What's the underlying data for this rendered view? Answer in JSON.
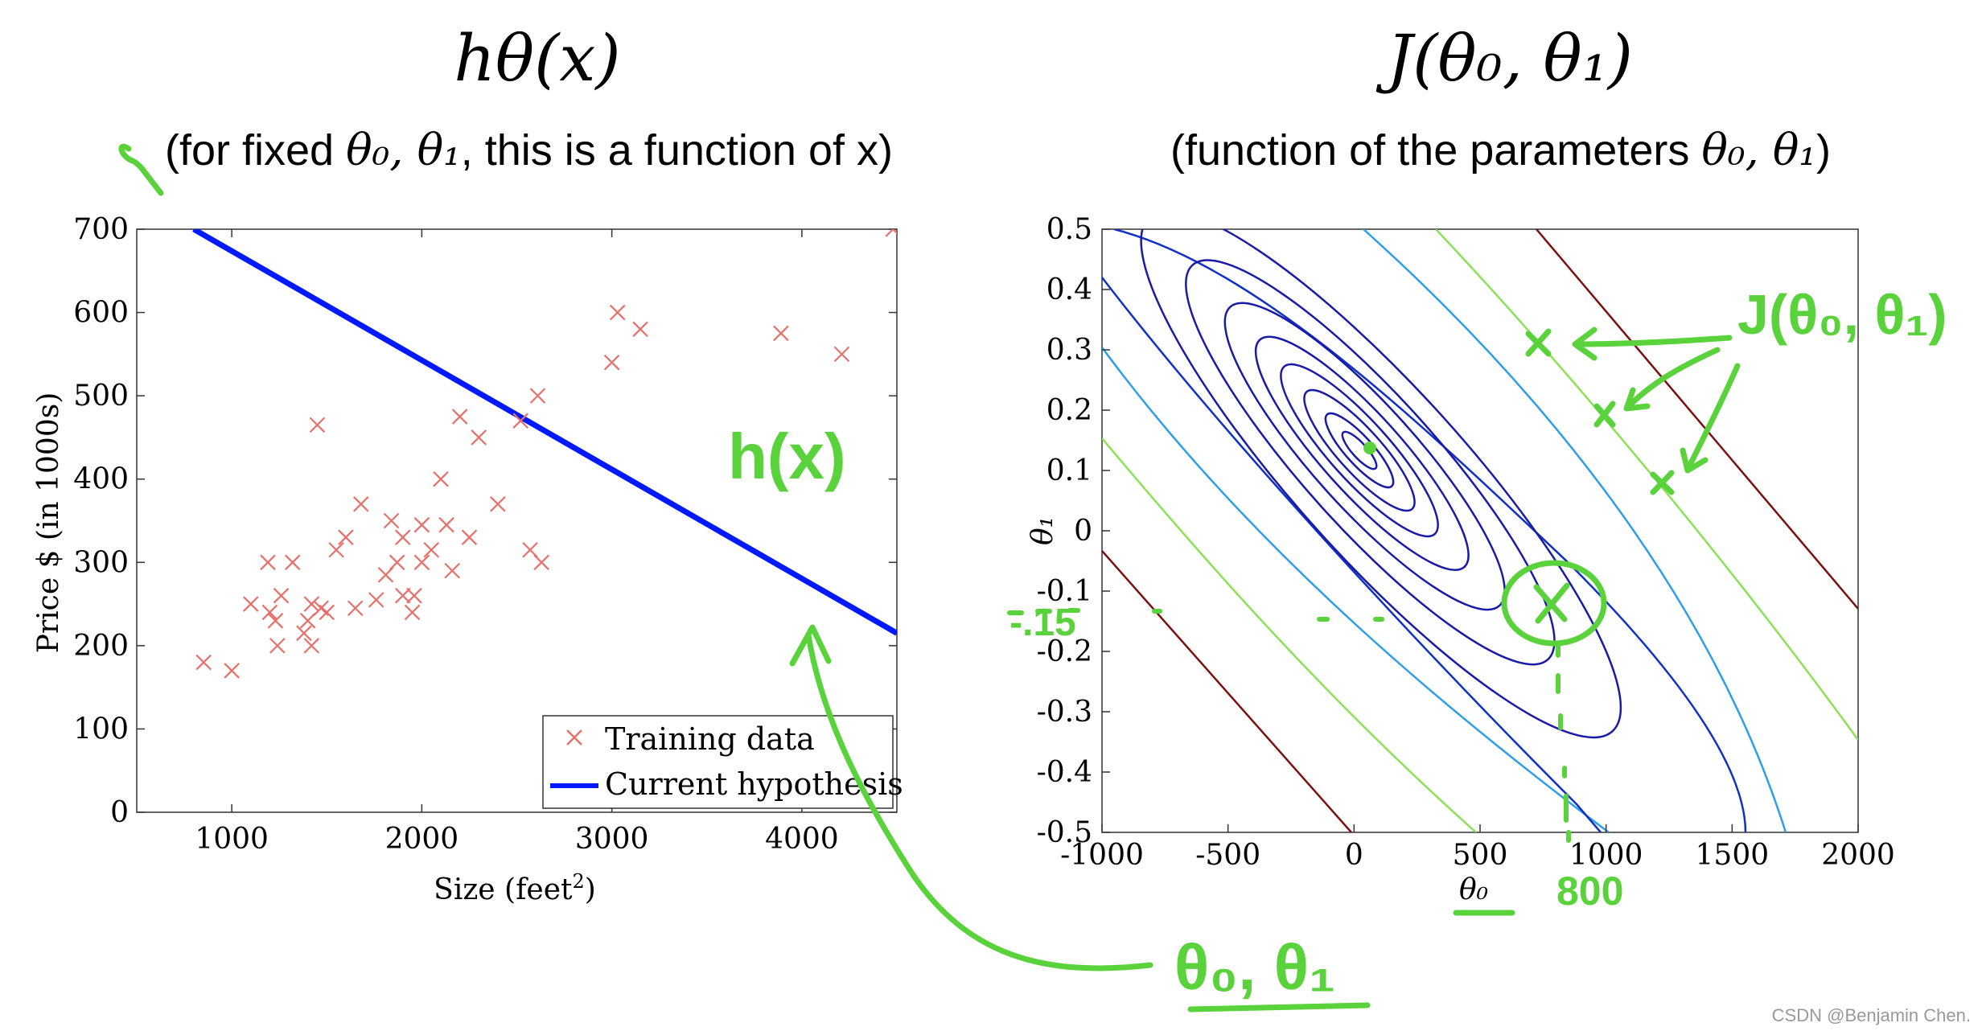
{
  "left": {
    "title": "hθ(x)",
    "subtitle_before": "(for fixed ",
    "subtitle_math": "θ₀, θ₁",
    "subtitle_after": ", this is a function of x)"
  },
  "right": {
    "title": "J(θ₀, θ₁)",
    "subtitle_before": "(function of the parameters ",
    "subtitle_math": "θ₀, θ₁",
    "subtitle_after": ")"
  },
  "annotations": {
    "hx": "h(x)",
    "j_label": "J(θ₀, θ₁)",
    "theta_label": "θ₀, θ₁",
    "x_800": "800",
    "y_015": "-.15"
  },
  "watermark": "CSDN @Benjamin Chen.",
  "colors": {
    "hypothesis": "#0019ff",
    "training": "#e8706a",
    "annotation": "#5ad23c"
  },
  "chart_data": [
    {
      "type": "scatter",
      "xlabel": "Size (feet²)",
      "xlabel_text": "Size (feet",
      "xlabel_sup": "2",
      "xlabel_close": ")",
      "ylabel": "Price $ (in 1000s)",
      "xlim": [
        500,
        4500
      ],
      "ylim": [
        0,
        700
      ],
      "xticks": [
        1000,
        2000,
        3000,
        4000
      ],
      "yticks": [
        0,
        100,
        200,
        300,
        400,
        500,
        600,
        700
      ],
      "grid": false,
      "legend_position": "bottom-right",
      "legend": [
        "Training data",
        "Current hypothesis"
      ],
      "series": [
        {
          "name": "Training data",
          "marker": "x",
          "points": [
            [
              852,
              180
            ],
            [
              1000,
              170
            ],
            [
              1100,
              250
            ],
            [
              1190,
              300
            ],
            [
              1200,
              240
            ],
            [
              1230,
              230
            ],
            [
              1240,
              200
            ],
            [
              1260,
              260
            ],
            [
              1320,
              300
            ],
            [
              1380,
              215
            ],
            [
              1400,
              230
            ],
            [
              1420,
              200
            ],
            [
              1420,
              250
            ],
            [
              1450,
              465
            ],
            [
              1470,
              245
            ],
            [
              1500,
              240
            ],
            [
              1550,
              315
            ],
            [
              1600,
              330
            ],
            [
              1650,
              245
            ],
            [
              1680,
              370
            ],
            [
              1760,
              255
            ],
            [
              1810,
              285
            ],
            [
              1840,
              350
            ],
            [
              1870,
              300
            ],
            [
              1900,
              330
            ],
            [
              1900,
              260
            ],
            [
              1950,
              240
            ],
            [
              1960,
              260
            ],
            [
              2000,
              300
            ],
            [
              2000,
              345
            ],
            [
              2050,
              315
            ],
            [
              2100,
              400
            ],
            [
              2130,
              345
            ],
            [
              2160,
              290
            ],
            [
              2200,
              475
            ],
            [
              2250,
              330
            ],
            [
              2300,
              450
            ],
            [
              2400,
              370
            ],
            [
              2520,
              470
            ],
            [
              2570,
              315
            ],
            [
              2610,
              500
            ],
            [
              2630,
              300
            ],
            [
              3000,
              540
            ],
            [
              3030,
              600
            ],
            [
              3150,
              580
            ],
            [
              3890,
              575
            ],
            [
              4210,
              550
            ],
            [
              4480,
              700
            ]
          ]
        },
        {
          "name": "Current hypothesis",
          "line": [
            [
              800,
              700
            ],
            [
              4500,
              215
            ]
          ]
        }
      ]
    },
    {
      "type": "contour",
      "xlabel": "θ₀",
      "ylabel": "θ₁",
      "xlim": [
        -1000,
        2000
      ],
      "ylim": [
        -0.5,
        0.5
      ],
      "xticks": [
        -1000,
        -500,
        0,
        500,
        1000,
        1500,
        2000
      ],
      "ytick_labels": [
        "0.5",
        "0.4",
        "0.3",
        "0.2",
        "0.1",
        "0",
        "-0.1",
        "-0.2",
        "-0.3",
        "-0.4",
        "-0.5"
      ],
      "minimum": [
        70,
        0.14
      ],
      "marked_points": [
        [
          800,
          -0.15
        ],
        [
          750,
          0.3
        ],
        [
          1000,
          0.18
        ],
        [
          1200,
          0.08
        ]
      ]
    }
  ]
}
